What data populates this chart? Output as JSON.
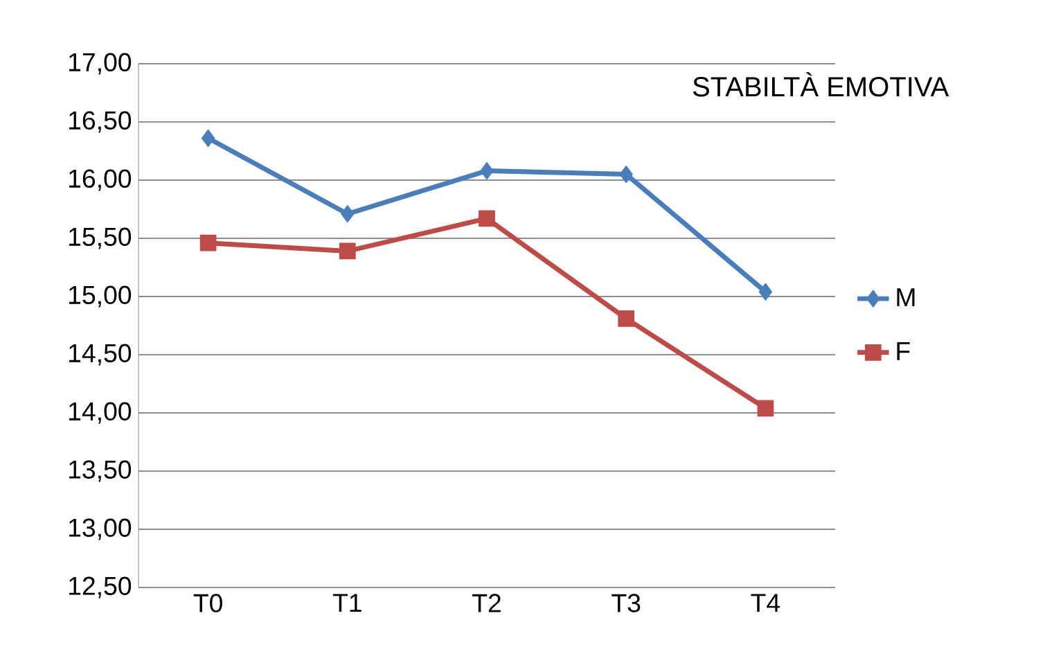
{
  "chart_data": {
    "type": "line",
    "title": "STABILTÀ EMOTIVA",
    "categories": [
      "T0",
      "T1",
      "T2",
      "T3",
      "T4"
    ],
    "series": [
      {
        "name": "M",
        "color": "#4a7ebb",
        "marker": "diamond",
        "values": [
          16.36,
          15.71,
          16.08,
          16.05,
          15.04
        ]
      },
      {
        "name": "F",
        "color": "#be4b48",
        "marker": "square",
        "values": [
          15.46,
          15.39,
          15.67,
          14.81,
          14.04
        ]
      }
    ],
    "ylim": [
      12.5,
      17
    ],
    "yticks": [
      {
        "value": 12.5,
        "label": "12,50"
      },
      {
        "value": 13,
        "label": "13,00"
      },
      {
        "value": 13.5,
        "label": "13,50"
      },
      {
        "value": 14,
        "label": "14,00"
      },
      {
        "value": 14.5,
        "label": "14,50"
      },
      {
        "value": 15,
        "label": "15,00"
      },
      {
        "value": 15.5,
        "label": "15,50"
      },
      {
        "value": 16,
        "label": "16,00"
      },
      {
        "value": 16.5,
        "label": "16,50"
      },
      {
        "value": 17,
        "label": "17,00"
      }
    ],
    "grid": "y",
    "legend": "right"
  }
}
